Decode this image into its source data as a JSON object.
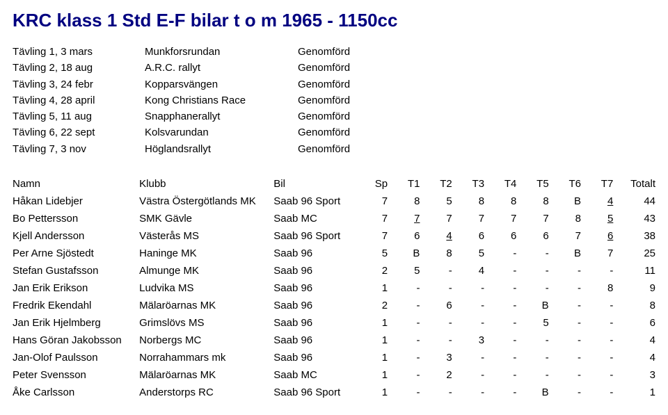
{
  "title": "KRC klass 1 Std E-F bilar t o m 1965 - 1150cc",
  "events": [
    {
      "label": "Tävling 1, 3 mars",
      "name": "Munkforsrundan",
      "status": "Genomförd"
    },
    {
      "label": "Tävling 2, 18 aug",
      "name": "A.R.C. rallyt",
      "status": "Genomförd"
    },
    {
      "label": "Tävling 3, 24 febr",
      "name": "Kopparsvängen",
      "status": "Genomförd"
    },
    {
      "label": "Tävling 4, 28 april",
      "name": "Kong Christians Race",
      "status": "Genomförd"
    },
    {
      "label": "Tävling 5, 11 aug",
      "name": "Snapphanerallyt",
      "status": "Genomförd"
    },
    {
      "label": "Tävling 6, 22 sept",
      "name": "Kolsvarundan",
      "status": "Genomförd"
    },
    {
      "label": "Tävling 7, 3 nov",
      "name": "Höglandsrallyt",
      "status": "Genomförd"
    }
  ],
  "headers": {
    "name": "Namn",
    "club": "Klubb",
    "car": "Bil",
    "sp": "Sp",
    "t1": "T1",
    "t2": "T2",
    "t3": "T3",
    "t4": "T4",
    "t5": "T5",
    "t6": "T6",
    "t7": "T7",
    "total": "Totalt"
  },
  "rows": [
    {
      "name": "Håkan Lidebjer",
      "club": "Västra Östergötlands MK",
      "car": "Saab 96 Sport",
      "sp": "7",
      "v": [
        "8",
        "5",
        "8",
        "8",
        "8",
        "B",
        "4"
      ],
      "u": [
        0,
        0,
        0,
        0,
        0,
        0,
        1
      ],
      "total": "44"
    },
    {
      "name": "Bo Pettersson",
      "club": "SMK Gävle",
      "car": "Saab MC",
      "sp": "7",
      "v": [
        "7",
        "7",
        "7",
        "7",
        "7",
        "8",
        "5"
      ],
      "u": [
        1,
        0,
        0,
        0,
        0,
        0,
        1
      ],
      "total": "43"
    },
    {
      "name": "Kjell Andersson",
      "club": "Västerås MS",
      "car": "Saab 96 Sport",
      "sp": "7",
      "v": [
        "6",
        "4",
        "6",
        "6",
        "6",
        "7",
        "6"
      ],
      "u": [
        0,
        1,
        0,
        0,
        0,
        0,
        1
      ],
      "total": "38"
    },
    {
      "name": "Per Arne Sjöstedt",
      "club": "Haninge MK",
      "car": "Saab 96",
      "sp": "5",
      "v": [
        "B",
        "8",
        "5",
        "-",
        "-",
        "B",
        "7"
      ],
      "u": [
        0,
        0,
        0,
        0,
        0,
        0,
        0
      ],
      "total": "25"
    },
    {
      "name": "Stefan Gustafsson",
      "club": "Almunge MK",
      "car": "Saab 96",
      "sp": "2",
      "v": [
        "5",
        "-",
        "4",
        "-",
        "-",
        "-",
        "-"
      ],
      "u": [
        0,
        0,
        0,
        0,
        0,
        0,
        0
      ],
      "total": "11"
    },
    {
      "name": "Jan Erik Erikson",
      "club": "Ludvika MS",
      "car": "Saab 96",
      "sp": "1",
      "v": [
        "-",
        "-",
        "-",
        "-",
        "-",
        "-",
        "8"
      ],
      "u": [
        0,
        0,
        0,
        0,
        0,
        0,
        0
      ],
      "total": "9"
    },
    {
      "name": "Fredrik Ekendahl",
      "club": "Mälaröarnas MK",
      "car": "Saab 96",
      "sp": "2",
      "v": [
        "-",
        "6",
        "-",
        "-",
        "B",
        "-",
        "-"
      ],
      "u": [
        0,
        0,
        0,
        0,
        0,
        0,
        0
      ],
      "total": "8"
    },
    {
      "name": "Jan Erik Hjelmberg",
      "club": "Grimslövs MS",
      "car": "Saab 96",
      "sp": "1",
      "v": [
        "-",
        "-",
        "-",
        "-",
        "5",
        "-",
        "-"
      ],
      "u": [
        0,
        0,
        0,
        0,
        0,
        0,
        0
      ],
      "total": "6"
    },
    {
      "name": "Hans Göran Jakobsson",
      "club": "Norbergs MC",
      "car": "Saab 96",
      "sp": "1",
      "v": [
        "-",
        "-",
        "3",
        "-",
        "-",
        "-",
        "-"
      ],
      "u": [
        0,
        0,
        0,
        0,
        0,
        0,
        0
      ],
      "total": "4"
    },
    {
      "name": "Jan-Olof Paulsson",
      "club": "Norrahammars mk",
      "car": "Saab 96",
      "sp": "1",
      "v": [
        "-",
        "3",
        "-",
        "-",
        "-",
        "-",
        "-"
      ],
      "u": [
        0,
        0,
        0,
        0,
        0,
        0,
        0
      ],
      "total": "4"
    },
    {
      "name": "Peter Svensson",
      "club": "Mälaröarnas MK",
      "car": "Saab MC",
      "sp": "1",
      "v": [
        "-",
        "2",
        "-",
        "-",
        "-",
        "-",
        "-"
      ],
      "u": [
        0,
        0,
        0,
        0,
        0,
        0,
        0
      ],
      "total": "3"
    },
    {
      "name": "Åke Carlsson",
      "club": "Anderstorps RC",
      "car": "Saab 96 Sport",
      "sp": "1",
      "v": [
        "-",
        "-",
        "-",
        "-",
        "B",
        "-",
        "-"
      ],
      "u": [
        0,
        0,
        0,
        0,
        0,
        0,
        0
      ],
      "total": "1"
    }
  ]
}
